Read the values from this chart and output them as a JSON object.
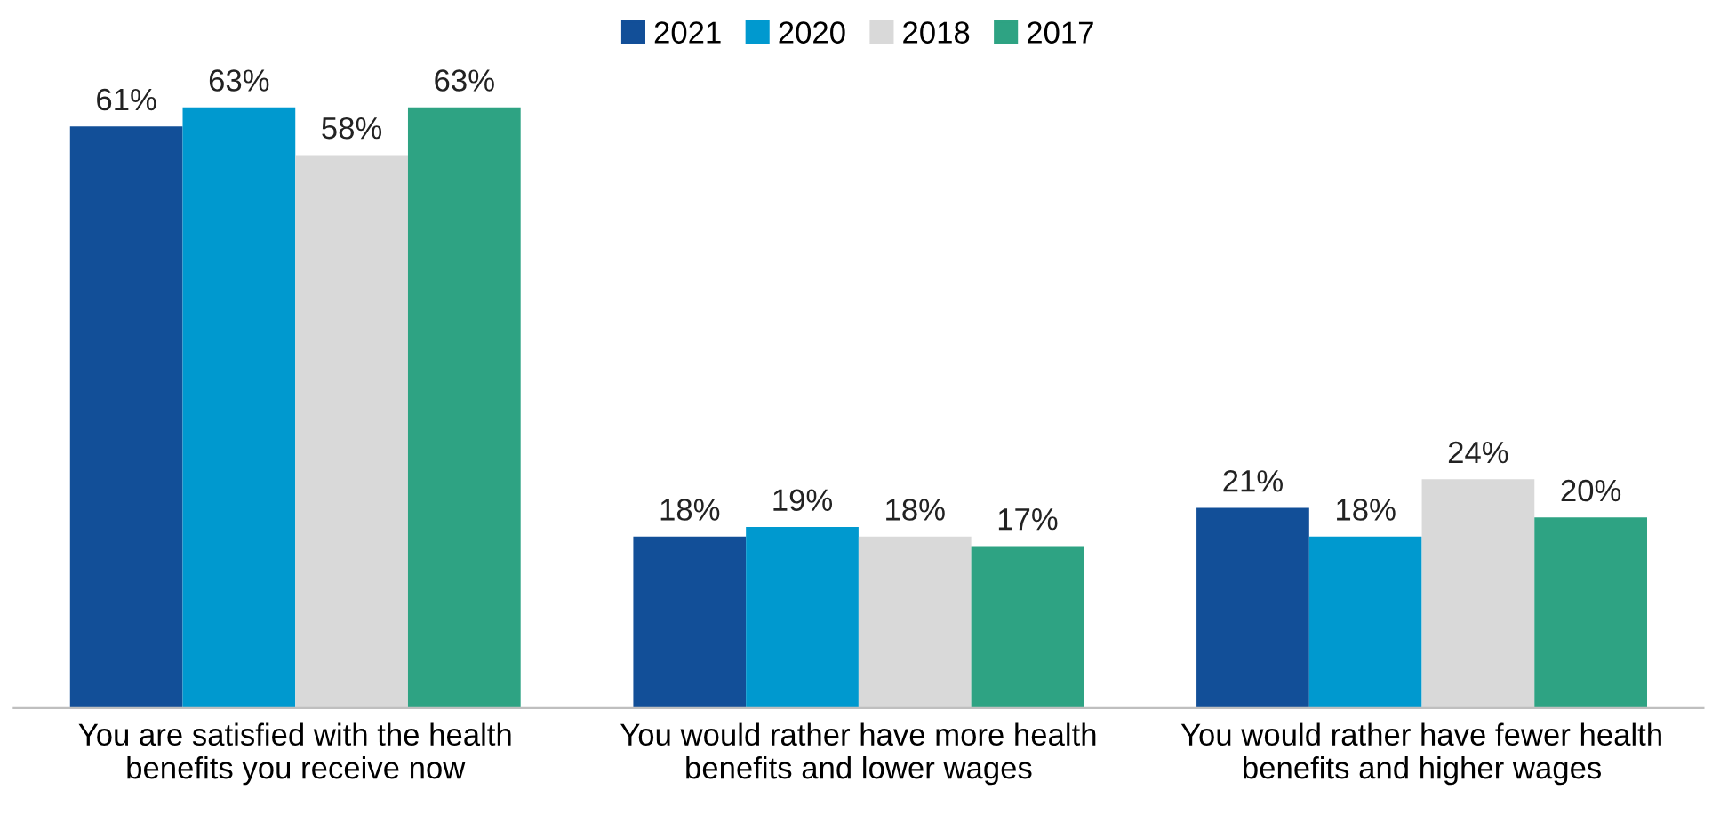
{
  "chart_data": {
    "type": "bar",
    "categories": [
      "You are satisfied with the health\nbenefits you receive now",
      "You would rather have more health\nbenefits and lower wages",
      "You would rather have fewer health\nbenefits and higher wages"
    ],
    "series": [
      {
        "name": "2021",
        "color": "#124f98",
        "values": [
          61,
          18,
          21
        ],
        "value_labels": [
          "61%",
          "18%",
          "21%"
        ]
      },
      {
        "name": "2020",
        "color": "#0099cf",
        "values": [
          63,
          19,
          18
        ],
        "value_labels": [
          "63%",
          "19%",
          "18%"
        ]
      },
      {
        "name": "2018",
        "color": "#d9d9d9",
        "values": [
          58,
          18,
          24
        ],
        "value_labels": [
          "58%",
          "18%",
          "24%"
        ]
      },
      {
        "name": "2017",
        "color": "#2ea383",
        "values": [
          63,
          17,
          20
        ],
        "value_labels": [
          "63%",
          "17%",
          "20%"
        ]
      }
    ],
    "grid": false,
    "legend": "top"
  }
}
